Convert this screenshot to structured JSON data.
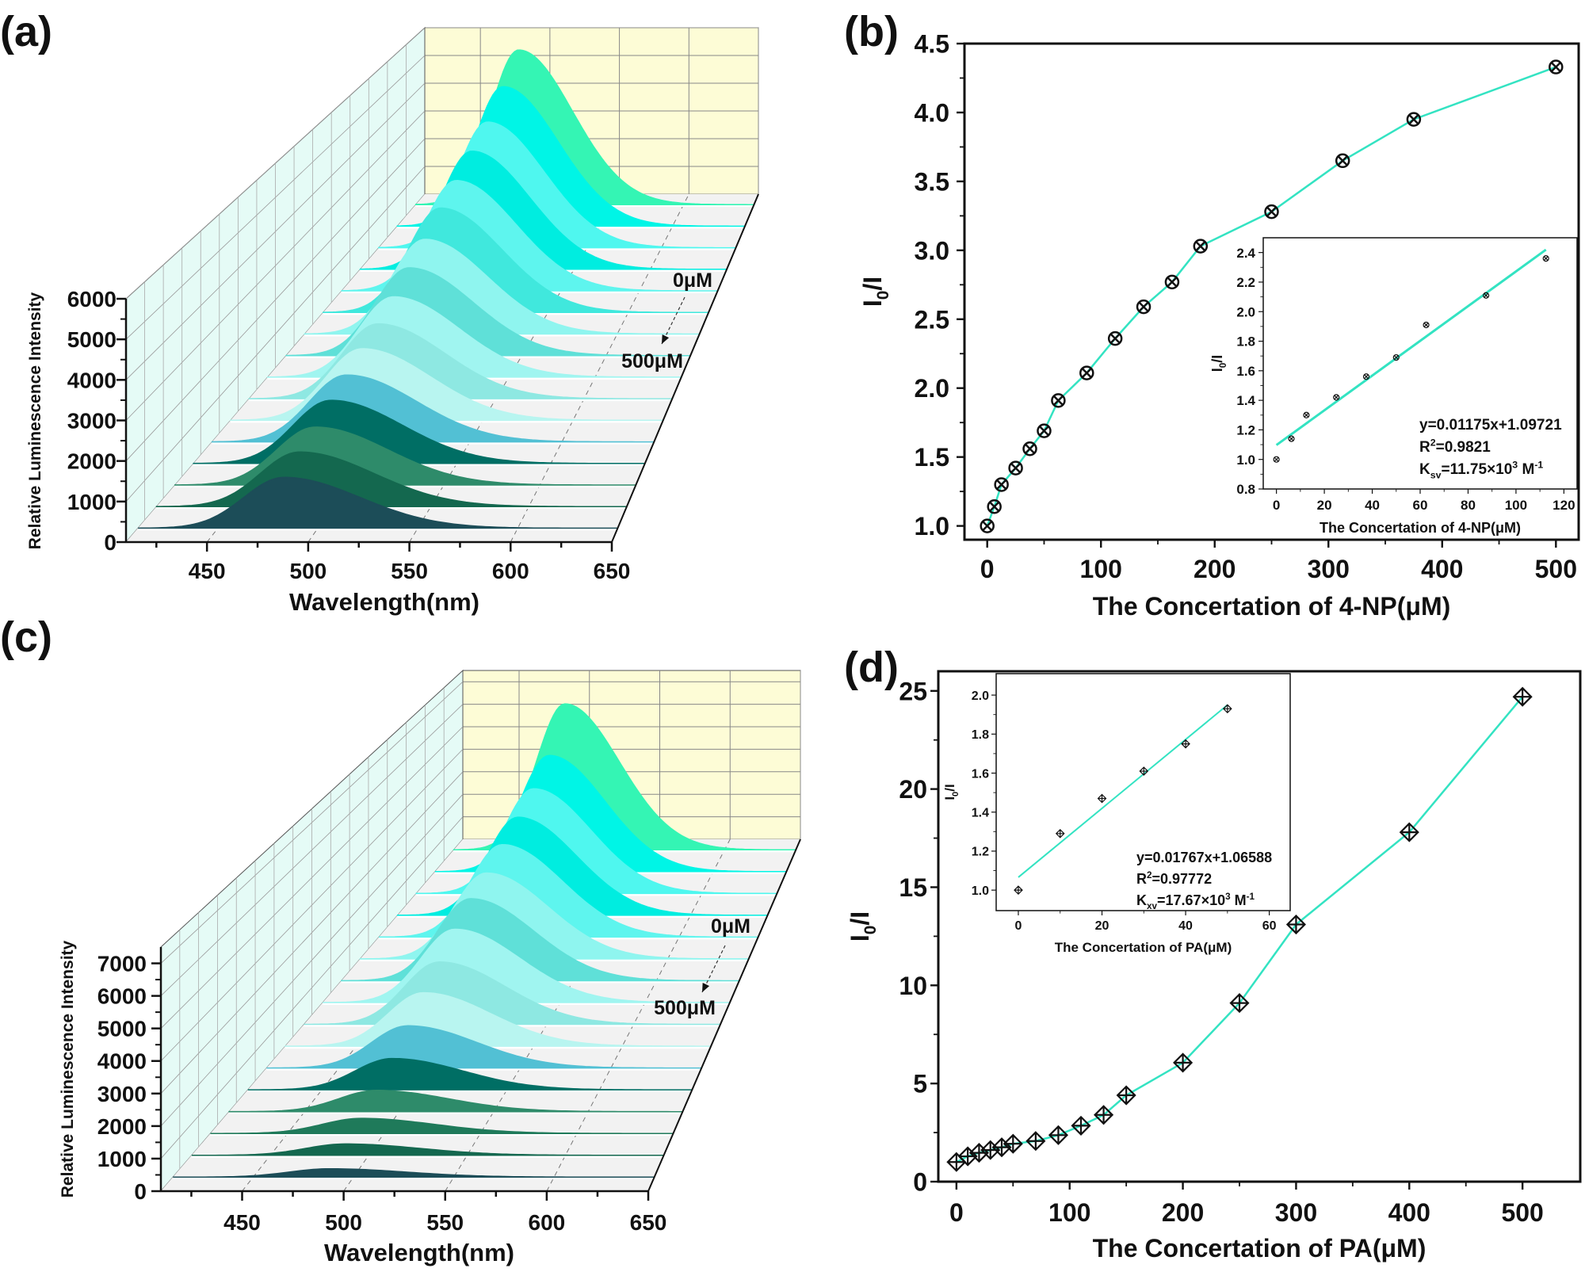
{
  "panel_labels": [
    "(a)",
    "(b)",
    "(c)",
    "(d)"
  ],
  "chart_data": [
    {
      "type": "waterfall",
      "panel": "(a)",
      "xlabel": "Wavelength(nm)",
      "ylabel": "Relative Luminescence Intensity",
      "xlim": [
        410,
        650
      ],
      "ylim": [
        0,
        6000
      ],
      "xticks": [
        "450",
        "500",
        "550",
        "600",
        "650"
      ],
      "yticks": [
        "0",
        "1000",
        "2000",
        "3000",
        "4000",
        "5000",
        "6000"
      ],
      "peak_wavelength": 483,
      "peak_intensity": [
        5500,
        4825,
        4231,
        3873,
        3526,
        3254,
        2880,
        2607,
        2331,
        2124,
        1986,
        1815,
        1677,
        1507,
        1392,
        1270
      ],
      "colors": [
        "#34f5b4",
        "#00f5e6",
        "#4ff7ef",
        "#00ede0",
        "#5ef5ee",
        "#40e8dd",
        "#8ff5ef",
        "#5fe0d8",
        "#a0f5f0",
        "#8ee8e2",
        "#b8f5f0",
        "#52c0d4",
        "#006e64",
        "#2e8b6a",
        "#14684f",
        "#1c4d58"
      ],
      "annotations": {
        "start": "0μM",
        "end": "500μM"
      },
      "back_wall_color": "#fdfcd6",
      "side_wall_color": "#e5fbf6",
      "floor_color": "#f2f2f2"
    },
    {
      "type": "line",
      "panel": "(b)",
      "xlabel": "The Concertation of 4-NP(μM)",
      "ylabel": [
        {
          "t": "I"
        },
        {
          "t": "0",
          "s": "sub"
        },
        {
          "t": "/I"
        }
      ],
      "xlim": [
        -20,
        520
      ],
      "ylim": [
        0.9,
        4.5
      ],
      "xticks": [
        "0",
        "100",
        "200",
        "300",
        "400",
        "500"
      ],
      "yticks": [
        "1.0",
        "1.5",
        "2.0",
        "2.5",
        "3.0",
        "3.5",
        "4.0",
        "4.5"
      ],
      "x": [
        0,
        6.25,
        12.5,
        25,
        37.5,
        50,
        62.5,
        87.5,
        112.5,
        137.5,
        162.5,
        187.5,
        250,
        312.5,
        375,
        500
      ],
      "y": [
        1.0,
        1.14,
        1.3,
        1.42,
        1.56,
        1.69,
        1.91,
        2.11,
        2.36,
        2.59,
        2.77,
        3.03,
        3.28,
        3.65,
        3.95,
        4.33
      ],
      "line_color": "#33e3c2",
      "marker": "circle-x",
      "inset": {
        "type": "scatter",
        "xlabel": "The Concertation of 4-NP(μM)",
        "ylabel": [
          {
            "t": "I"
          },
          {
            "t": "0",
            "s": "sub"
          },
          {
            "t": "/I"
          }
        ],
        "xlim": [
          -5.5,
          125.5
        ],
        "ylim": [
          0.8,
          2.5
        ],
        "xticks": [
          "0",
          "20",
          "40",
          "60",
          "80",
          "100",
          "120"
        ],
        "yticks": [
          "0.8",
          "1.0",
          "1.2",
          "1.4",
          "1.6",
          "1.8",
          "2.0",
          "2.2",
          "2.4"
        ],
        "x": [
          0,
          6.25,
          12.5,
          25,
          37.5,
          50,
          62.5,
          87.5,
          112.5
        ],
        "y": [
          1.0,
          1.14,
          1.3,
          1.42,
          1.56,
          1.69,
          1.91,
          2.11,
          2.36
        ],
        "fit": {
          "slope": 0.01175,
          "intercept": 1.09721,
          "x_range": [
            0,
            112.5
          ]
        },
        "equation": "y=0.01175x+1.09721",
        "r2": [
          {
            "t": "R"
          },
          {
            "t": "2",
            "s": "sup"
          },
          {
            "t": "=0.9821"
          }
        ],
        "ksv": [
          {
            "t": "K"
          },
          {
            "t": "sv",
            "s": "sub"
          },
          {
            "t": "=11.75×10"
          },
          {
            "t": "3",
            "s": "sup"
          },
          {
            "t": " M"
          },
          {
            "t": "-1",
            "s": "sup"
          }
        ]
      }
    },
    {
      "type": "waterfall",
      "panel": "(c)",
      "xlabel": "Wavelength(nm)",
      "ylabel": "Relative Luminescence Intensity",
      "xlim": [
        410,
        650
      ],
      "ylim": [
        0,
        7500
      ],
      "xticks": [
        "450",
        "500",
        "550",
        "600",
        "650"
      ],
      "yticks": [
        "0",
        "1000",
        "2000",
        "3000",
        "4000",
        "5000",
        "6000",
        "7000"
      ],
      "peak_wavelength": 488,
      "peak_intensity": [
        6400,
        4961,
        4354,
        3975,
        3657,
        3316,
        3092,
        2700,
        2246,
        1882,
        1455,
        1056,
        703,
        489,
        360,
        259
      ],
      "colors": [
        "#34f5b4",
        "#00f5e6",
        "#4ff7ef",
        "#00ede0",
        "#5ef5ee",
        "#8ff5ef",
        "#5fe0d8",
        "#a0f5f0",
        "#8ee8e2",
        "#b8f5f0",
        "#52c0d4",
        "#006e64",
        "#2e8b6a",
        "#1f7a5a",
        "#14684f",
        "#1c4d58"
      ],
      "annotations": {
        "start": "0μM",
        "end": "500μM"
      },
      "back_wall_color": "#fdfcd6",
      "side_wall_color": "#e5fbf6",
      "floor_color": "#f2f2f2"
    },
    {
      "type": "line",
      "panel": "(d)",
      "xlabel": "The Concertation of PA(μM)",
      "ylabel": [
        {
          "t": "I"
        },
        {
          "t": "0",
          "s": "sub"
        },
        {
          "t": "/I"
        }
      ],
      "xlim": [
        -16,
        551
      ],
      "ylim": [
        0,
        26
      ],
      "xticks": [
        "0",
        "100",
        "200",
        "300",
        "400",
        "500"
      ],
      "yticks": [
        "0",
        "5",
        "10",
        "15",
        "20",
        "25"
      ],
      "x": [
        0,
        10,
        20,
        30,
        40,
        50,
        70,
        90,
        110,
        130,
        150,
        200,
        250,
        300,
        400,
        500
      ],
      "y": [
        1.0,
        1.29,
        1.47,
        1.61,
        1.75,
        1.93,
        2.07,
        2.37,
        2.85,
        3.4,
        4.4,
        6.06,
        9.1,
        13.1,
        17.8,
        24.7
      ],
      "line_color": "#33e3c2",
      "marker": "diamond-plus",
      "inset": {
        "type": "scatter",
        "xlabel": "The Concertation of PA(μM)",
        "ylabel": [
          {
            "t": "I"
          },
          {
            "t": "0",
            "s": "sub"
          },
          {
            "t": "/I"
          }
        ],
        "xlim": [
          -5.3,
          65
        ],
        "ylim": [
          0.895,
          2.11
        ],
        "xticks": [
          "0",
          "20",
          "40",
          "60"
        ],
        "yticks": [
          "1.0",
          "1.2",
          "1.4",
          "1.6",
          "1.8",
          "2.0"
        ],
        "x": [
          0,
          10,
          20,
          30,
          40,
          50
        ],
        "y": [
          1.0,
          1.29,
          1.47,
          1.61,
          1.75,
          1.93
        ],
        "fit": {
          "slope": 0.01767,
          "intercept": 1.06588,
          "x_range": [
            0,
            50
          ]
        },
        "equation": "y=0.01767x+1.06588",
        "r2": [
          {
            "t": "R"
          },
          {
            "t": "2",
            "s": "sup"
          },
          {
            "t": "=0.97772"
          }
        ],
        "ksv": [
          {
            "t": "K"
          },
          {
            "t": "xv",
            "s": "sub"
          },
          {
            "t": "=17.67×10"
          },
          {
            "t": "3",
            "s": "sup"
          },
          {
            "t": " M"
          },
          {
            "t": "-1",
            "s": "sup"
          }
        ]
      }
    }
  ]
}
